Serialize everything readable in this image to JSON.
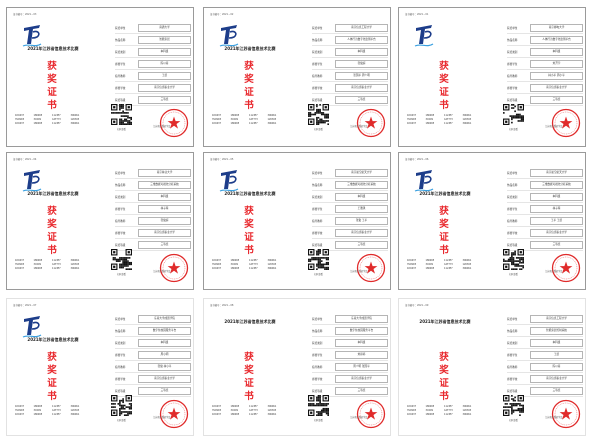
{
  "page": {
    "cards": [
      {
        "cert_no": "证书编号：2021...03",
        "competition_title": "2021年江苏省信息技术比赛",
        "award_chars": [
          "获",
          "奖",
          "证",
          "书"
        ],
        "fields": [
          {
            "key": "获奖单位",
            "value": "南通大学"
          },
          {
            "key": "作品名称",
            "value": "智能家居"
          },
          {
            "key": "获奖类别",
            "value": "本科组"
          },
          {
            "key": "参赛学生",
            "value": "陈以南"
          },
          {
            "key": "指导教师",
            "value": "王凯"
          },
          {
            "key": "参赛学校",
            "value": "南京信息职业大学"
          },
          {
            "key": "获奖等级",
            "value": "三等奖"
          }
        ],
        "stats": [
          "1D0437",
          "180905",
          "11L3E7",
          "3060K1",
          "3V09D3",
          "3C009",
          "CAT7Y3",
          "120303",
          "1D0437",
          "180905",
          "11L3E7",
          "3060K1"
        ],
        "qr_caption": "扫码查看",
        "issuer": "江苏省计算机学会"
      },
      {
        "cert_no": "证书编号：2021...02",
        "competition_title": "2021年江苏省信息技术比赛",
        "award_chars": [
          "获",
          "奖",
          "证",
          "书"
        ],
        "fields": [
          {
            "key": "获奖单位",
            "value": "南京信息工程大学"
          },
          {
            "key": "作品名称",
            "value": "人体行为数字化监测平台"
          },
          {
            "key": "获奖类别",
            "value": "本科组"
          },
          {
            "key": "参赛学生",
            "value": "张俊超"
          },
          {
            "key": "指导教师",
            "value": "张国平 周少明"
          },
          {
            "key": "参赛学校",
            "value": "南京信息职业大学"
          },
          {
            "key": "获奖等级",
            "value": "三等奖"
          }
        ],
        "stats": [
          "1D0437",
          "180905",
          "11L3E7",
          "3060K1",
          "3V09D3",
          "3C009",
          "CAT7Y3",
          "120303",
          "1D0437",
          "180905",
          "11L3E7",
          "3060K1"
        ],
        "qr_caption": "扫码查看",
        "issuer": "江苏省计算机学会"
      },
      {
        "cert_no": "证书编号：2021...01",
        "competition_title": "",
        "award_chars": [
          "获",
          "奖",
          "证",
          "书"
        ],
        "fields": [
          {
            "key": "获奖单位",
            "value": "南京邮电大学"
          },
          {
            "key": "作品名称",
            "value": "人体行为数字化监测平台"
          },
          {
            "key": "获奖类别",
            "value": "本科组"
          },
          {
            "key": "参赛学生",
            "value": "刘开宇"
          },
          {
            "key": "指导教师",
            "value": "林小平 周小平"
          },
          {
            "key": "参赛学校",
            "value": "南京信息职业大学"
          },
          {
            "key": "获奖等级",
            "value": "三等奖"
          }
        ],
        "stats": [
          "1D0437",
          "180905",
          "11L3E7",
          "3060K1",
          "3V09D3",
          "3C009",
          "CAT7Y3",
          "120303",
          "1D0437",
          "180905",
          "11L3E7",
          "3060K1"
        ],
        "qr_caption": "扫码查看",
        "issuer": "江苏省计算机学会"
      },
      {
        "cert_no": "证书编号：2021...04",
        "competition_title": "2021年江苏省信息技术比赛",
        "award_chars": [
          "获",
          "奖",
          "证",
          "书"
        ],
        "fields": [
          {
            "key": "获奖单位",
            "value": "南京林业大学"
          },
          {
            "key": "作品名称",
            "value": "三维数据可视化分析系统"
          },
          {
            "key": "获奖类别",
            "value": "本科组"
          },
          {
            "key": "参赛学生",
            "value": "林子晴"
          },
          {
            "key": "指导教师",
            "value": "张俊超"
          },
          {
            "key": "参赛学校",
            "value": "南京信息职业大学"
          },
          {
            "key": "获奖等级",
            "value": "三等奖"
          }
        ],
        "stats": [
          "1D0437",
          "180905",
          "11L3E7",
          "3060K1",
          "3V09D3",
          "3C009",
          "CAT7Y3",
          "120303",
          "1D0437",
          "180905",
          "11L3E7",
          "3060K1"
        ],
        "qr_caption": "扫码查看",
        "issuer": "江苏省计算机学会"
      },
      {
        "cert_no": "证书编号：2021...05",
        "competition_title": "2021年江苏省信息技术比赛",
        "award_chars": [
          "获",
          "奖",
          "证",
          "书"
        ],
        "fields": [
          {
            "key": "获奖单位",
            "value": "南京航空航天大学"
          },
          {
            "key": "作品名称",
            "value": "三维数据可视化分析系统"
          },
          {
            "key": "获奖类别",
            "value": "本科组"
          },
          {
            "key": "参赛学生",
            "value": "王雅琪"
          },
          {
            "key": "指导教师",
            "value": "张俊 王平"
          },
          {
            "key": "参赛学校",
            "value": "南京信息职业大学"
          },
          {
            "key": "获奖等级",
            "value": "三等奖"
          }
        ],
        "stats": [
          "1D0437",
          "180905",
          "11L3E7",
          "3060K1",
          "3V09D3",
          "3C009",
          "CAT7Y3",
          "120303",
          "1D0437",
          "180905",
          "11L3E7",
          "3060K1"
        ],
        "qr_caption": "扫码查看",
        "issuer": "江苏省计算机学会"
      },
      {
        "cert_no": "证书编号：2021...06",
        "competition_title": "2021年江苏省信息技术比赛",
        "award_chars": [
          "获",
          "奖",
          "证",
          "书"
        ],
        "fields": [
          {
            "key": "获奖单位",
            "value": "南京航空航天大学"
          },
          {
            "key": "作品名称",
            "value": "三维数据可视化分析系统"
          },
          {
            "key": "获奖类别",
            "value": "本科组"
          },
          {
            "key": "参赛学生",
            "value": "林子晴"
          },
          {
            "key": "指导教师",
            "value": "王平 王凯"
          },
          {
            "key": "参赛学校",
            "value": "南京信息职业大学"
          },
          {
            "key": "获奖等级",
            "value": "三等奖"
          }
        ],
        "stats": [
          "1D0437",
          "180905",
          "11L3E7",
          "3060K1",
          "3V09D3",
          "3C009",
          "CAT7Y3",
          "120303",
          "1D0437",
          "180905",
          "11L3E7",
          "3060K1"
        ],
        "qr_caption": "扫码查看",
        "issuer": "江苏省计算机学会"
      },
      {
        "cert_no": "证书编号：2021...07",
        "competition_title": "2021年江苏省信息技术比赛",
        "award_chars": [
          "获",
          "奖",
          "证",
          "书"
        ],
        "fields": [
          {
            "key": "获奖单位",
            "value": "东南大学成贤学院"
          },
          {
            "key": "作品名称",
            "value": "数字化校园服务平台"
          },
          {
            "key": "获奖类别",
            "value": "本科组"
          },
          {
            "key": "参赛学生",
            "value": "周小明"
          },
          {
            "key": "指导教师",
            "value": "张俊 林小平"
          },
          {
            "key": "参赛学校",
            "value": "南京信息职业大学"
          },
          {
            "key": "获奖等级",
            "value": "三等奖"
          }
        ],
        "stats": [
          "1D0437",
          "180905",
          "11L3E7",
          "3060K1",
          "3V09D3",
          "3C009",
          "CAT7Y3",
          "120303",
          "1D0437",
          "180905",
          "11L3E7",
          "3060K1"
        ],
        "qr_caption": "扫码查看",
        "issuer": "江苏省计算机学会"
      },
      {
        "cert_no": "证书编号：2021...08",
        "competition_title": "2021年江苏省信息技术比赛",
        "award_chars": [
          "获",
          "奖",
          "证",
          "书"
        ],
        "fields": [
          {
            "key": "获奖单位",
            "value": "东南大学成贤学院"
          },
          {
            "key": "作品名称",
            "value": "数字化校园服务平台"
          },
          {
            "key": "获奖类别",
            "value": "本科组"
          },
          {
            "key": "参赛学生",
            "value": "刘婷婷"
          },
          {
            "key": "指导教师",
            "value": "周少明 张国平"
          },
          {
            "key": "参赛学校",
            "value": "南京信息职业大学"
          },
          {
            "key": "获奖等级",
            "value": "三等奖"
          }
        ],
        "stats": [
          "1D0437",
          "180905",
          "11L3E7",
          "3060K1",
          "3V09D3",
          "3C009",
          "CAT7Y3",
          "120303",
          "1D0437",
          "180905",
          "11L3E7",
          "3060K1"
        ],
        "qr_caption": "扫码查看",
        "issuer": "江苏省计算机学会"
      },
      {
        "cert_no": "证书编号：2021...09",
        "competition_title": "2021年江苏省信息技术比赛",
        "award_chars": [
          "获",
          "奖",
          "证",
          "书"
        ],
        "fields": [
          {
            "key": "获奖单位",
            "value": "南京信息工程大学"
          },
          {
            "key": "作品名称",
            "value": "智能家居控制系统"
          },
          {
            "key": "获奖类别",
            "value": "本科组"
          },
          {
            "key": "参赛学生",
            "value": "王凯"
          },
          {
            "key": "指导教师",
            "value": "陈以南"
          },
          {
            "key": "参赛学校",
            "value": "南京信息职业大学"
          },
          {
            "key": "获奖等级",
            "value": "三等奖"
          }
        ],
        "stats": [
          "1D0437",
          "180905",
          "11L3E7",
          "3060K1",
          "3V09D3",
          "3C009",
          "CAT7Y3",
          "120303",
          "1D0437",
          "180905",
          "11L3E7",
          "3060K1"
        ],
        "qr_caption": "扫码查看",
        "issuer": "江苏省计算机学会"
      }
    ],
    "colors": {
      "award_red": "#e8262b",
      "seal_red": "#e02b2b",
      "logo_blue": "#1d3d8a",
      "border": "#9a9a9a"
    }
  }
}
